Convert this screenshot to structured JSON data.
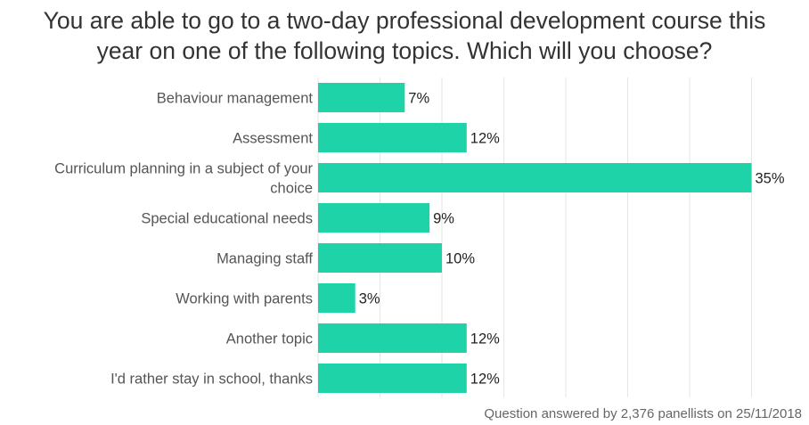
{
  "chart_data": {
    "type": "bar",
    "orientation": "horizontal",
    "title_lines": [
      "You are able to go to a two-day professional development course this",
      "year on one of the following topics. Which will you choose?"
    ],
    "categories": [
      "Behaviour management",
      "Assessment",
      "Curriculum planning in a subject of your choice",
      "Special educational needs",
      "Managing staff",
      "Working with parents",
      "Another topic",
      "I'd rather stay in school, thanks"
    ],
    "category_label_lines": [
      [
        "Behaviour management"
      ],
      [
        "Assessment"
      ],
      [
        "Curriculum planning in a subject of your",
        "choice"
      ],
      [
        "Special educational needs"
      ],
      [
        "Managing staff"
      ],
      [
        "Working with parents"
      ],
      [
        "Another topic"
      ],
      [
        "I'd rather stay in school, thanks"
      ]
    ],
    "values": [
      7,
      12,
      35,
      9,
      10,
      3,
      12,
      12
    ],
    "value_labels": [
      "7%",
      "12%",
      "35%",
      "9%",
      "10%",
      "3%",
      "12%",
      "12%"
    ],
    "unit": "%",
    "xlim": [
      0,
      35
    ],
    "grid": true,
    "bar_color": "#1dd3a7",
    "footnote": "Question answered by 2,376 panellists on 25/11/2018"
  }
}
